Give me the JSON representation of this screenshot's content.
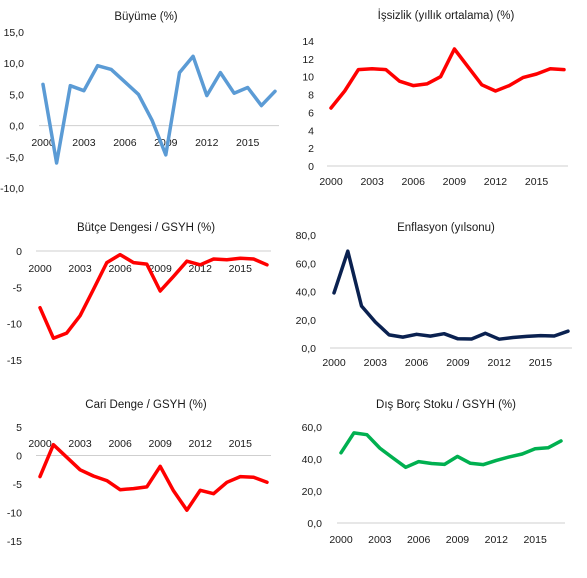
{
  "charts": [
    {
      "type": "line",
      "title": "Büyüme (%)",
      "color": "#5b9bd5",
      "x": [
        2000,
        2001,
        2002,
        2003,
        2004,
        2005,
        2006,
        2007,
        2008,
        2009,
        2010,
        2011,
        2012,
        2013,
        2014,
        2015,
        2016,
        2017
      ],
      "values": [
        6.6,
        -6.0,
        6.4,
        5.6,
        9.6,
        9.0,
        7.0,
        5.0,
        0.8,
        -4.7,
        8.5,
        11.1,
        4.8,
        8.5,
        5.2,
        6.1,
        3.2,
        5.5
      ],
      "ylim": [
        -10,
        15
      ],
      "yticks": [
        "15,0",
        "10,0",
        "5,0",
        "0,0",
        "-5,0",
        "-10,0"
      ],
      "xticks": [
        "2000",
        "2003",
        "2006",
        "2009",
        "2012",
        "2015"
      ]
    },
    {
      "type": "line",
      "title": "İşsizlik (yıllık ortalama) (%)",
      "color": "#ff0000",
      "x": [
        2000,
        2001,
        2002,
        2003,
        2004,
        2005,
        2006,
        2007,
        2008,
        2009,
        2010,
        2011,
        2012,
        2013,
        2014,
        2015,
        2016,
        2017
      ],
      "values": [
        6.5,
        8.4,
        10.8,
        10.9,
        10.8,
        9.5,
        9.0,
        9.2,
        10.0,
        13.1,
        11.1,
        9.1,
        8.4,
        9.0,
        9.9,
        10.3,
        10.9,
        10.8
      ],
      "ylim": [
        0,
        14
      ],
      "yticks": [
        "14",
        "12",
        "10",
        "8",
        "6",
        "4",
        "2",
        "0"
      ],
      "xticks": [
        "2000",
        "2003",
        "2006",
        "2009",
        "2012",
        "2015"
      ]
    },
    {
      "type": "line",
      "title": "Bütçe Dengesi / GSYH (%)",
      "color": "#ff0000",
      "x": [
        2000,
        2001,
        2002,
        2003,
        2004,
        2005,
        2006,
        2007,
        2008,
        2009,
        2010,
        2011,
        2012,
        2013,
        2014,
        2015,
        2016,
        2017
      ],
      "values": [
        -7.8,
        -12.0,
        -11.3,
        -8.9,
        -5.3,
        -1.6,
        -0.5,
        -1.6,
        -1.8,
        -5.5,
        -3.5,
        -1.4,
        -1.9,
        -1.1,
        -1.2,
        -1.0,
        -1.1,
        -1.9
      ],
      "ylim": [
        -15,
        0
      ],
      "yticks": [
        "0",
        "-5",
        "-10",
        "-15"
      ],
      "xticks": [
        "2000",
        "2003",
        "2006",
        "2009",
        "2012",
        "2015"
      ]
    },
    {
      "type": "line",
      "title": "Enflasyon (yılsonu)",
      "color": "#0a2150",
      "x": [
        2000,
        2001,
        2002,
        2003,
        2004,
        2005,
        2006,
        2007,
        2008,
        2009,
        2010,
        2011,
        2012,
        2013,
        2014,
        2015,
        2016,
        2017
      ],
      "values": [
        39.0,
        68.5,
        29.7,
        18.4,
        9.3,
        7.7,
        9.7,
        8.4,
        10.1,
        6.5,
        6.4,
        10.4,
        6.2,
        7.4,
        8.2,
        8.8,
        8.5,
        11.9
      ],
      "ylim": [
        0,
        80
      ],
      "yticks": [
        "80,0",
        "60,0",
        "40,0",
        "20,0",
        "0,0"
      ],
      "xticks": [
        "2000",
        "2003",
        "2006",
        "2009",
        "2012",
        "2015"
      ]
    },
    {
      "type": "line",
      "title": "Cari Denge / GSYH (%)",
      "color": "#ff0000",
      "x": [
        2000,
        2001,
        2002,
        2003,
        2004,
        2005,
        2006,
        2007,
        2008,
        2009,
        2010,
        2011,
        2012,
        2013,
        2014,
        2015,
        2016,
        2017
      ],
      "values": [
        -3.7,
        1.9,
        -0.3,
        -2.5,
        -3.6,
        -4.4,
        -6.0,
        -5.8,
        -5.5,
        -1.9,
        -6.2,
        -9.6,
        -6.1,
        -6.7,
        -4.7,
        -3.7,
        -3.8,
        -4.7
      ],
      "ylim": [
        -15,
        5
      ],
      "yticks": [
        "5",
        "0",
        "-5",
        "-10",
        "-15"
      ],
      "xticks": [
        "2000",
        "2003",
        "2006",
        "2009",
        "2012",
        "2015"
      ]
    },
    {
      "type": "line",
      "title": "Dış Borç Stoku / GSYH (%)",
      "color": "#00b050",
      "x": [
        2000,
        2001,
        2002,
        2003,
        2004,
        2005,
        2006,
        2007,
        2008,
        2009,
        2010,
        2011,
        2012,
        2013,
        2014,
        2015,
        2016,
        2017
      ],
      "values": [
        43.9,
        56.3,
        55.2,
        46.8,
        40.7,
        34.8,
        38.4,
        37.2,
        36.6,
        41.6,
        37.3,
        36.5,
        39.1,
        41.3,
        43.1,
        46.4,
        47.0,
        51.3
      ],
      "ylim": [
        0,
        60
      ],
      "yticks": [
        "60,0",
        "40,0",
        "20,0",
        "0,0"
      ],
      "xticks": [
        "2000",
        "2003",
        "2006",
        "2009",
        "2012",
        "2015"
      ]
    }
  ]
}
